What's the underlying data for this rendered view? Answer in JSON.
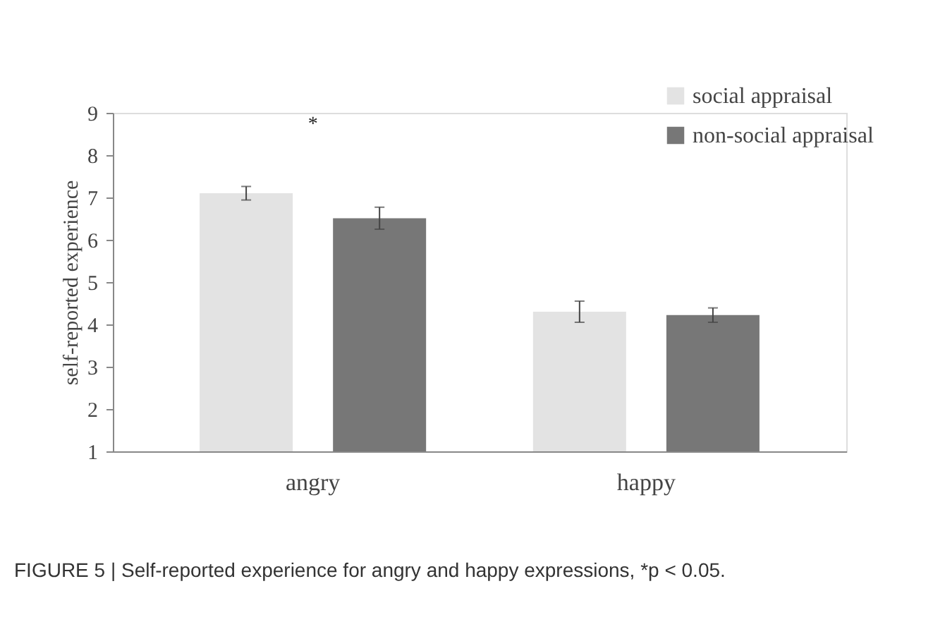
{
  "chart_data": {
    "type": "bar",
    "ylabel": "self-reported experience",
    "categories": [
      "angry",
      "happy"
    ],
    "series": [
      {
        "name": "social appraisal",
        "color": "#e3e3e3",
        "values": [
          7.1,
          4.3
        ],
        "errors": [
          0.16,
          0.25
        ]
      },
      {
        "name": "non-social appraisal",
        "color": "#777777",
        "values": [
          6.51,
          4.22
        ],
        "errors": [
          0.26,
          0.17
        ]
      }
    ],
    "ylim": [
      1,
      9
    ],
    "yticks": [
      1,
      2,
      3,
      4,
      5,
      6,
      7,
      8,
      9
    ],
    "grid": false,
    "legend": "top right",
    "annotations": [
      "*",
      "FIGURE 5 | Self-reported experience for angry and happy expressions, *p < 0.05."
    ]
  }
}
